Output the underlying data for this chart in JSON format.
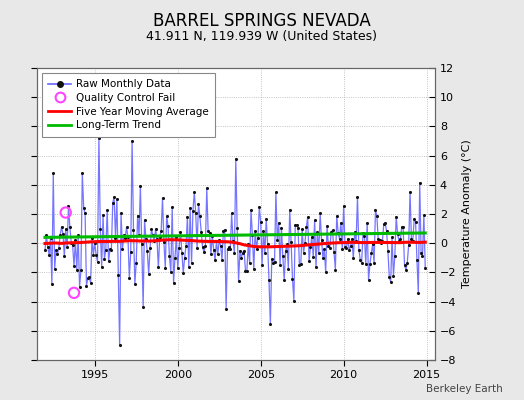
{
  "title": "BARREL SPRINGS NEVADA",
  "subtitle": "41.911 N, 119.939 W (United States)",
  "ylabel": "Temperature Anomaly (°C)",
  "watermark": "Berkeley Earth",
  "ylim": [
    -8,
    12
  ],
  "yticks": [
    -8,
    -6,
    -4,
    -2,
    0,
    2,
    4,
    6,
    8,
    10,
    12
  ],
  "xlim": [
    1991.5,
    2015.5
  ],
  "xticks": [
    1995,
    2000,
    2005,
    2010,
    2015
  ],
  "bg_color": "#e8e8e8",
  "plot_bg_color": "#ffffff",
  "grid_color": "#b0b0b0",
  "raw_line_color": "#6666ff",
  "raw_dot_color": "#111111",
  "moving_avg_color": "#ff0000",
  "trend_color": "#00bb00",
  "qc_fail_color": "#ff44ff",
  "title_fontsize": 12,
  "subtitle_fontsize": 9,
  "legend_fontsize": 7.5,
  "ylabel_fontsize": 8,
  "tick_fontsize": 8,
  "legend_labels": [
    "Raw Monthly Data",
    "Quality Control Fail",
    "Five Year Moving Average",
    "Long-Term Trend"
  ]
}
